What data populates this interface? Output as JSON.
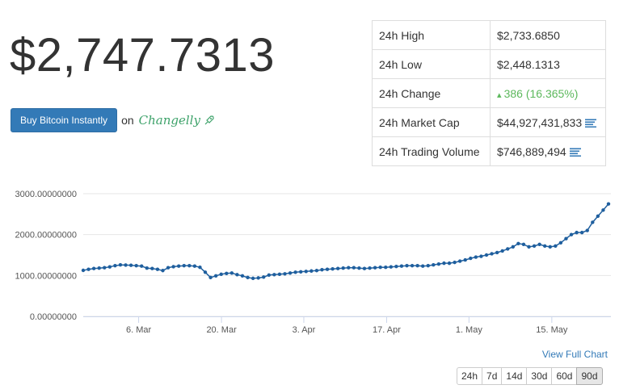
{
  "price": "$2,747.7313",
  "buy": {
    "button_label": "Buy Bitcoin Instantly",
    "on_label": "on",
    "brand": "Changelly"
  },
  "stats": [
    {
      "label": "24h High",
      "value": "$2,733.6850"
    },
    {
      "label": "24h Low",
      "value": "$2,448.1313"
    },
    {
      "label": "24h Change",
      "value": "386 (16.365%)",
      "trend": "up"
    },
    {
      "label": "24h Market Cap",
      "value": "$44,927,431,833",
      "icon": "bars-icon"
    },
    {
      "label": "24h Trading Volume",
      "value": "$746,889,494",
      "icon": "bars-icon"
    }
  ],
  "colors": {
    "accent": "#337ab7",
    "positive": "#5cb85c",
    "line": "#1f5f9e",
    "brand": "#3fa36b"
  },
  "chart_data": {
    "type": "line",
    "x_ticks": [
      "6. Mar",
      "20. Mar",
      "3. Apr",
      "17. Apr",
      "1. May",
      "15. May"
    ],
    "y_ticks": [
      "0.00000000",
      "1000.00000000",
      "2000.00000000",
      "3000.00000000"
    ],
    "ylim": [
      0,
      3000
    ],
    "grid": true,
    "series": [
      {
        "values": [
          1125,
          1150,
          1170,
          1180,
          1190,
          1210,
          1240,
          1260,
          1255,
          1250,
          1240,
          1230,
          1180,
          1170,
          1150,
          1120,
          1190,
          1215,
          1230,
          1240,
          1240,
          1230,
          1200,
          1080,
          950,
          990,
          1030,
          1050,
          1060,
          1020,
          990,
          950,
          930,
          940,
          960,
          1010,
          1020,
          1030,
          1040,
          1060,
          1080,
          1090,
          1100,
          1110,
          1120,
          1140,
          1150,
          1160,
          1170,
          1180,
          1190,
          1190,
          1180,
          1170,
          1180,
          1190,
          1200,
          1200,
          1210,
          1220,
          1230,
          1240,
          1240,
          1240,
          1230,
          1240,
          1260,
          1280,
          1300,
          1300,
          1320,
          1350,
          1380,
          1420,
          1450,
          1470,
          1500,
          1530,
          1560,
          1600,
          1650,
          1700,
          1780,
          1760,
          1700,
          1720,
          1760,
          1720,
          1700,
          1720,
          1800,
          1900,
          2000,
          2050,
          2050,
          2100,
          2300,
          2450,
          2600,
          2750
        ]
      }
    ]
  },
  "links": {
    "view_full": "View Full Chart"
  },
  "ranges": [
    {
      "label": "24h",
      "active": false
    },
    {
      "label": "7d",
      "active": false
    },
    {
      "label": "14d",
      "active": false
    },
    {
      "label": "30d",
      "active": false
    },
    {
      "label": "60d",
      "active": false
    },
    {
      "label": "90d",
      "active": true
    }
  ]
}
